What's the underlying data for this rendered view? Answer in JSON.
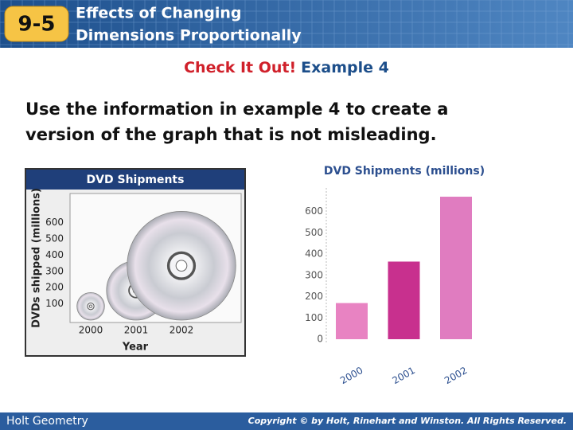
{
  "header": {
    "badge": "9-5",
    "title_line1": "Effects of Changing",
    "title_line2": "Dimensions Proportionally"
  },
  "subtitle": {
    "lead": "Check It Out!",
    "rest": "Example 4"
  },
  "body": {
    "line1": "Use the information in example 4 to create a",
    "line2": "version of the graph that is not misleading."
  },
  "chart_data": [
    {
      "type": "pictogram",
      "title": "DVD Shipments",
      "y_label": "DVDs shipped (millions)",
      "x_label": "Year",
      "categories": [
        "2000",
        "2001",
        "2002"
      ],
      "values": [
        170,
        365,
        670
      ],
      "ylim": [
        0,
        780
      ],
      "yticks": [
        100,
        200,
        300,
        400,
        500,
        600
      ],
      "grid": false
    },
    {
      "type": "bar",
      "title": "DVD Shipments (millions)",
      "categories": [
        "2000",
        "2001",
        "2002"
      ],
      "values": [
        170,
        365,
        670
      ],
      "colors": [
        "#e883c2",
        "#c8308e",
        "#e07cc0"
      ],
      "ylim": [
        0,
        700
      ],
      "yticks": [
        0,
        100,
        200,
        300,
        400,
        500,
        600
      ],
      "grid": false
    }
  ],
  "footer": {
    "left": "Holt Geometry",
    "right": "Copyright © by Holt, Rinehart and Winston. All Rights Reserved."
  }
}
